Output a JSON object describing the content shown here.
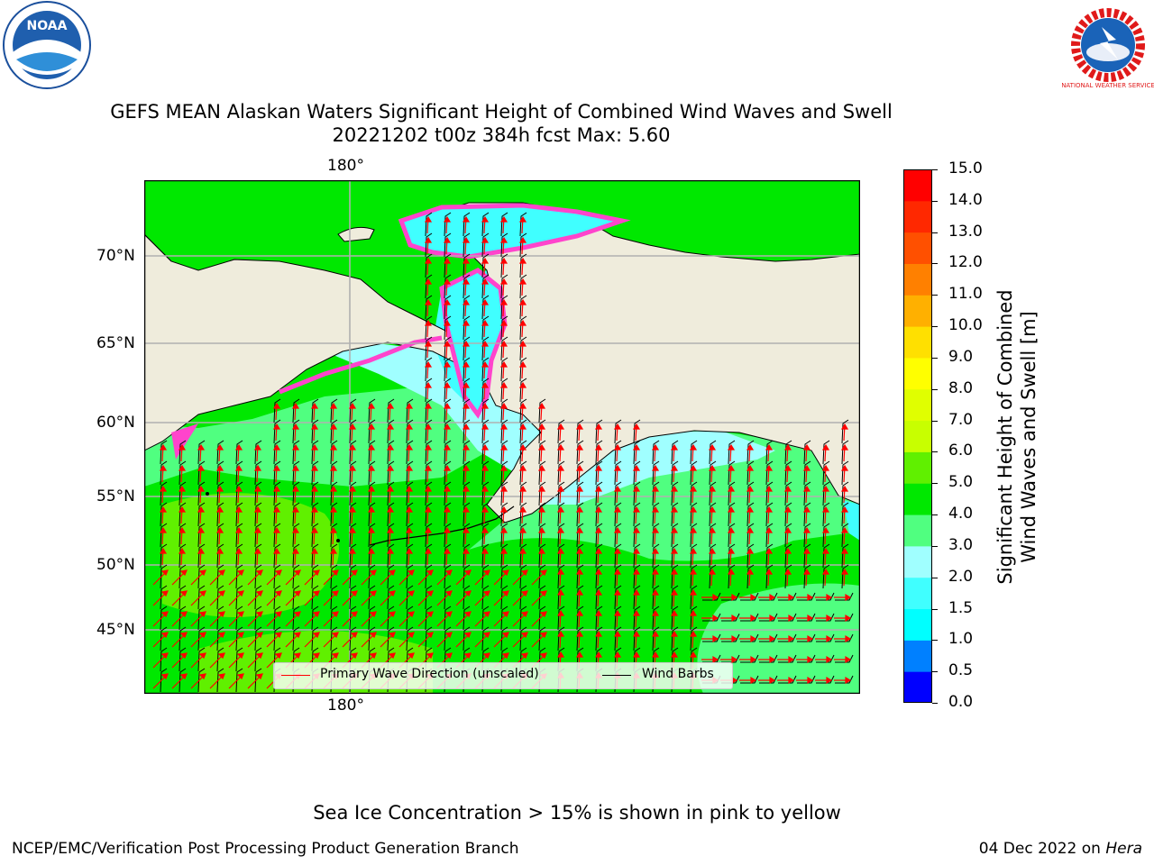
{
  "logos": {
    "left_name": "NOAA",
    "right_name": "NATIONAL WEATHER SERVICE"
  },
  "title": {
    "line1": "GEFS MEAN Alaskan Waters Significant Height of Combined Wind Waves and Swell",
    "line2": "20221202 t00z 384h fcst   Max: 5.60"
  },
  "map": {
    "lon_labels": {
      "top": "180°",
      "bottom": "180°"
    },
    "lat_labels": [
      "70°N",
      "65°N",
      "60°N",
      "55°N",
      "50°N",
      "45°N"
    ],
    "colors": {
      "land": "#efecdc",
      "coast": "#000000",
      "grid": "#b0b0b0",
      "wave_arrow": "#ff0000",
      "barb": "#000000"
    }
  },
  "legend": {
    "wave_label": "Primary Wave Direction (unscaled)",
    "barb_label": "Wind Barbs"
  },
  "colorbar": {
    "label_line1": "Significant Height of Combined",
    "label_line2": "Wind Waves and Swell [m]",
    "ticks": [
      "0.0",
      "0.5",
      "1.0",
      "1.5",
      "2.0",
      "3.0",
      "4.0",
      "5.0",
      "6.0",
      "7.0",
      "8.0",
      "9.0",
      "10.0",
      "11.0",
      "12.0",
      "13.0",
      "14.0",
      "15.0"
    ],
    "colors": [
      "#0000ff",
      "#0080ff",
      "#00ffff",
      "#40ffff",
      "#a0ffff",
      "#50ff80",
      "#00e800",
      "#60f000",
      "#c8ff00",
      "#e0ff00",
      "#ffff00",
      "#ffe000",
      "#ffb000",
      "#ff8000",
      "#ff5000",
      "#ff2800",
      "#ff0000"
    ]
  },
  "footer": {
    "ice_note": "Sea Ice Concentration > 15% is shown in pink to yellow",
    "credit": "NCEP/EMC/Verification Post Processing Product Generation Branch",
    "date": "04 Dec 2022 on",
    "host": "Hera"
  }
}
